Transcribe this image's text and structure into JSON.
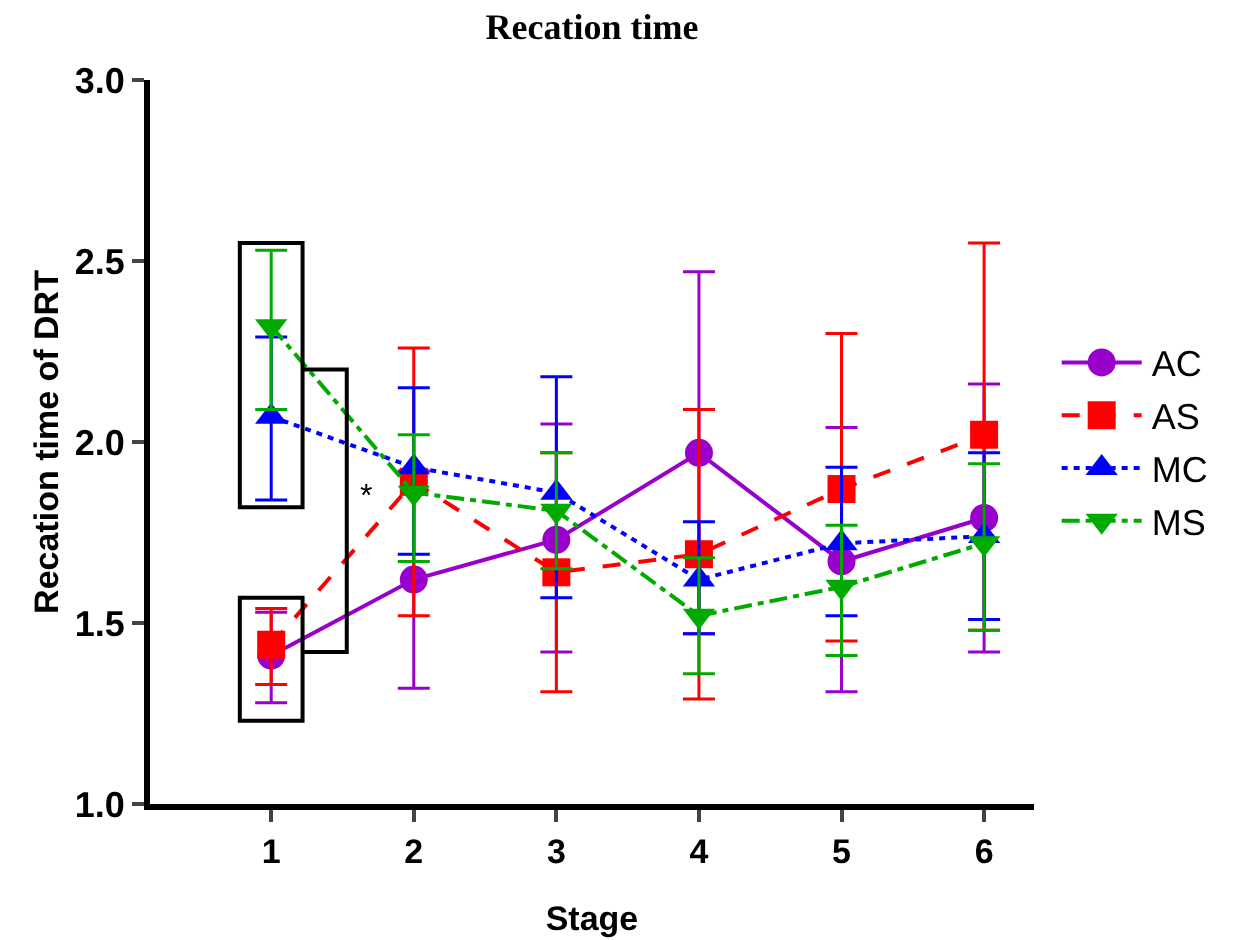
{
  "chart_data": {
    "type": "line",
    "title": "Recation time",
    "xlabel": "Stage",
    "ylabel": "Recation time of DRT",
    "x": [
      1,
      2,
      3,
      4,
      5,
      6
    ],
    "xlim": [
      0.15,
      6.35
    ],
    "xticks": [
      1,
      2,
      3,
      4,
      5,
      6
    ],
    "ylim": [
      1,
      3
    ],
    "yticks": [
      {
        "value": 1,
        "label": "1.0"
      },
      {
        "value": 1.5,
        "label": "1.5"
      },
      {
        "value": 2,
        "label": "2.0"
      },
      {
        "value": 2.5,
        "label": "2.5"
      },
      {
        "value": 3,
        "label": "3.0"
      }
    ],
    "grid": false,
    "legend": "right",
    "annotations": [
      "*"
    ],
    "series": [
      {
        "name": "AC",
        "color": "#9900cc",
        "marker": "circle",
        "line_style": "solid",
        "values": [
          1.41,
          1.62,
          1.73,
          1.97,
          1.67,
          1.79
        ],
        "errors": [
          [
            1.28,
            1.53
          ],
          [
            1.32,
            1.92
          ],
          [
            1.42,
            2.05
          ],
          [
            1.47,
            2.47
          ],
          [
            1.31,
            2.04
          ],
          [
            1.42,
            2.16
          ]
        ]
      },
      {
        "name": "AS",
        "color": "#ff0000",
        "marker": "square",
        "line_style": "dashed",
        "values": [
          1.44,
          1.89,
          1.64,
          1.69,
          1.87,
          2.02
        ],
        "errors": [
          [
            1.33,
            1.54
          ],
          [
            1.52,
            2.26
          ],
          [
            1.31,
            1.97
          ],
          [
            1.29,
            2.09
          ],
          [
            1.45,
            2.3
          ],
          [
            1.48,
            2.55
          ]
        ]
      },
      {
        "name": "MC",
        "color": "#0000ff",
        "marker": "triangle",
        "line_style": "dotted",
        "values": [
          2.07,
          1.93,
          1.86,
          1.62,
          1.72,
          1.74
        ],
        "errors": [
          [
            1.84,
            2.29
          ],
          [
            1.69,
            2.15
          ],
          [
            1.57,
            2.18
          ],
          [
            1.47,
            1.78
          ],
          [
            1.52,
            1.93
          ],
          [
            1.51,
            1.97
          ]
        ]
      },
      {
        "name": "MS",
        "color": "#00aa00",
        "marker": "triangle-down",
        "line_style": "dashdot",
        "values": [
          2.32,
          1.86,
          1.81,
          1.52,
          1.6,
          1.72
        ],
        "errors": [
          [
            2.09,
            2.53
          ],
          [
            1.67,
            2.02
          ],
          [
            1.65,
            1.97
          ],
          [
            1.36,
            1.68
          ],
          [
            1.41,
            1.77
          ],
          [
            1.48,
            1.94
          ]
        ]
      }
    ]
  }
}
